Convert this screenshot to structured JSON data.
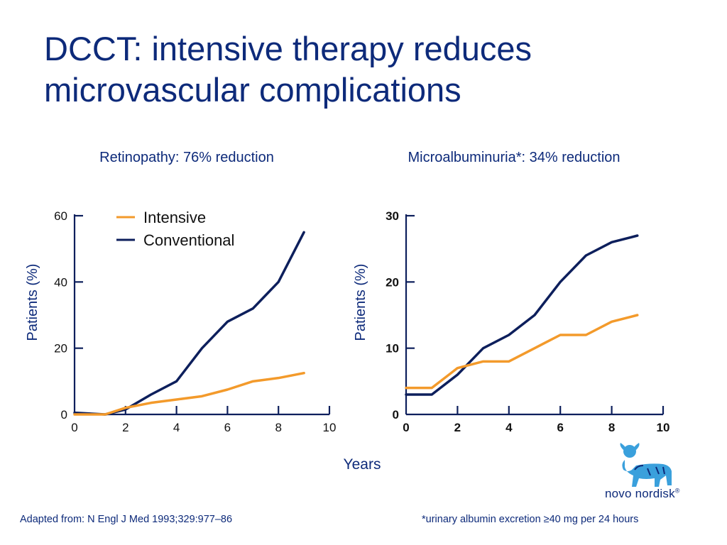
{
  "slide": {
    "title": "DCCT: intensive therapy reduces microvascular complications",
    "x_axis_shared_label": "Years",
    "footnote_source": "Adapted from: N Engl J Med 1993;329:977–86",
    "footnote_note": "*urinary albumin excretion ≥40 mg per 24 hours",
    "logo_text": "novo nordisk",
    "logo_mark": "®"
  },
  "colors": {
    "title": "#0d2a7a",
    "intensive": "#f39a2b",
    "conventional": "#0d1f5c",
    "axis": "#0d1f5c",
    "logo_blue": "#3aa0dc"
  },
  "chart_data": [
    {
      "type": "line",
      "title": "Retinopathy: 76% reduction",
      "xlabel": "Years",
      "ylabel": "Patients (%)",
      "xlim": [
        0,
        10
      ],
      "ylim": [
        0,
        60
      ],
      "xticks": [
        0,
        2,
        4,
        6,
        8,
        10
      ],
      "yticks": [
        0,
        20,
        40,
        60
      ],
      "legend": "top-left",
      "grid": false,
      "series": [
        {
          "name": "Intensive",
          "x": [
            0,
            1.2,
            2,
            3,
            4,
            5,
            6,
            7,
            8,
            9
          ],
          "values": [
            0,
            0,
            2,
            3.5,
            4.5,
            5.5,
            7.5,
            10,
            11,
            12.5
          ]
        },
        {
          "name": "Conventional",
          "x": [
            0,
            1.2,
            2,
            3,
            4,
            5,
            6,
            7,
            8,
            9
          ],
          "values": [
            0.5,
            0,
            1.5,
            6,
            10,
            20,
            28,
            32,
            40,
            55
          ]
        }
      ]
    },
    {
      "type": "line",
      "title": "Microalbuminuria*: 34% reduction",
      "xlabel": "Years",
      "ylabel": "Patients (%)",
      "xlim": [
        0,
        10
      ],
      "ylim": [
        0,
        30
      ],
      "xticks": [
        0,
        2,
        4,
        6,
        8,
        10
      ],
      "yticks": [
        0,
        10,
        20,
        30
      ],
      "grid": false,
      "series": [
        {
          "name": "Intensive",
          "x": [
            0,
            1,
            2,
            3,
            4,
            5,
            6,
            7,
            8,
            9
          ],
          "values": [
            4,
            4,
            7,
            8,
            8,
            10,
            12,
            12,
            14,
            15
          ]
        },
        {
          "name": "Conventional",
          "x": [
            0,
            1,
            2,
            3,
            4,
            5,
            6,
            7,
            8,
            9
          ],
          "values": [
            3,
            3,
            6,
            10,
            12,
            15,
            20,
            24,
            26,
            27
          ]
        }
      ]
    }
  ]
}
